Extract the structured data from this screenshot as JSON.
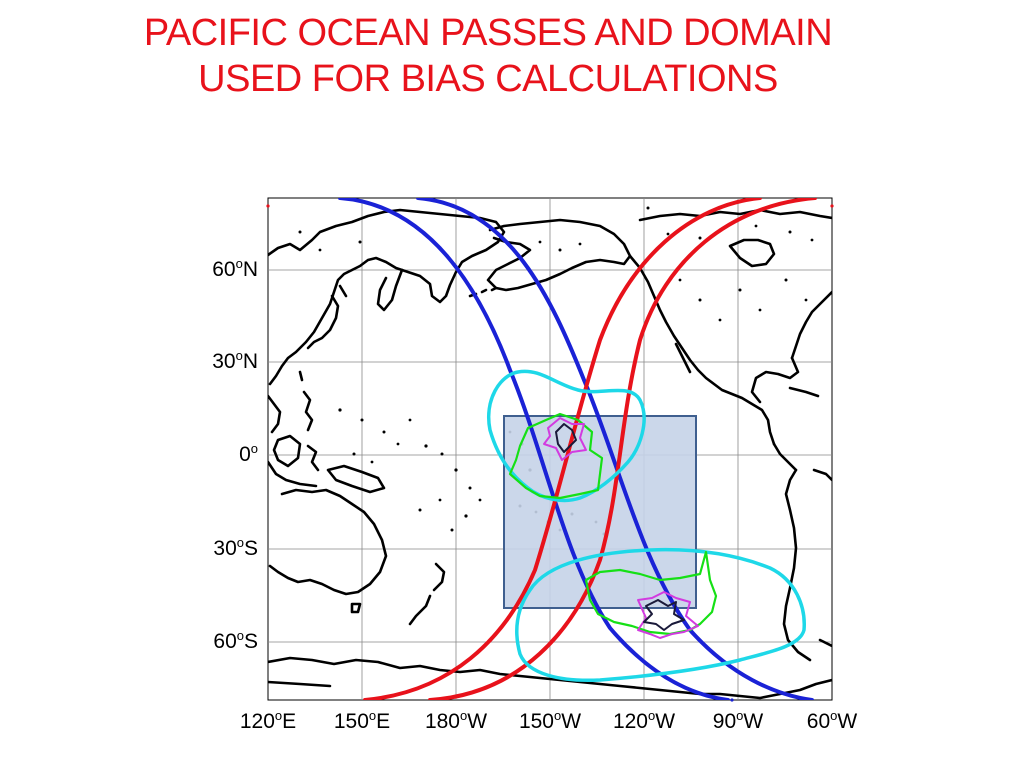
{
  "title": {
    "line1": "PACIFIC OCEAN PASSES AND DOMAIN",
    "line2": "USED FOR BIAS CALCULATIONS"
  },
  "axes": {
    "lat_ticks": [
      {
        "num": "60",
        "deg": "o",
        "hemi": "N"
      },
      {
        "num": "30",
        "deg": "o",
        "hemi": "N"
      },
      {
        "num": "0",
        "deg": "o",
        "hemi": ""
      },
      {
        "num": "30",
        "deg": "o",
        "hemi": "S"
      },
      {
        "num": "60",
        "deg": "o",
        "hemi": "S"
      }
    ],
    "lon_ticks": [
      {
        "num": "120",
        "deg": "o",
        "hemi": "E"
      },
      {
        "num": "150",
        "deg": "o",
        "hemi": "E"
      },
      {
        "num": "180",
        "deg": "o",
        "hemi": "W"
      },
      {
        "num": "150",
        "deg": "o",
        "hemi": "W"
      },
      {
        "num": "120",
        "deg": "o",
        "hemi": "W"
      },
      {
        "num": "90",
        "deg": "o",
        "hemi": "W"
      },
      {
        "num": "60",
        "deg": "o",
        "hemi": "W"
      }
    ]
  },
  "colors": {
    "title": "#e8121b",
    "pass_blue": "#1a22d6",
    "pass_red": "#e8121b",
    "domain_fill": "#c5d3e8",
    "domain_stroke": "#3f5f8f",
    "contour_cyan": "#1ed8e8",
    "contour_green": "#16e016",
    "contour_magenta": "#d23be0",
    "contour_dark": "#1a1a3a"
  },
  "map": {
    "grid": "on",
    "lon_range": [
      "120E",
      "60W"
    ],
    "lat_range": [
      "80S",
      "80N"
    ],
    "bias_domain": {
      "lon": [
        "165W",
        "103W"
      ],
      "lat": [
        "12N",
        "50S"
      ]
    },
    "pass_count": {
      "blue": 2,
      "red": 2
    }
  }
}
